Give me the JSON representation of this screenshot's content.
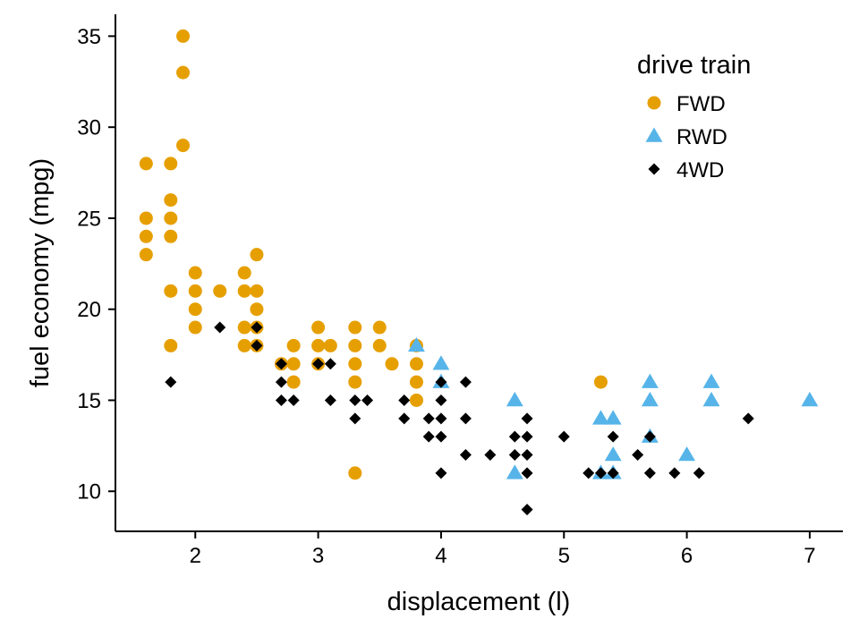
{
  "chart_data": {
    "type": "scatter",
    "title": "",
    "xlabel": "displacement (l)",
    "ylabel": "fuel economy (mpg)",
    "xlim": [
      1.35,
      7.27
    ],
    "ylim": [
      7.8,
      36.2
    ],
    "x_ticks": [
      2,
      3,
      4,
      5,
      6,
      7
    ],
    "y_ticks": [
      10,
      15,
      20,
      25,
      30,
      35
    ],
    "grid": false,
    "legend": {
      "title": "drive train",
      "placement": "top-right",
      "items": [
        {
          "label": "FWD",
          "shape": "circle",
          "color": "#E69F00"
        },
        {
          "label": "RWD",
          "shape": "triangle",
          "color": "#56B4E9"
        },
        {
          "label": "4WD",
          "shape": "diamond",
          "color": "#000000"
        }
      ]
    },
    "series": [
      {
        "name": "FWD",
        "shape": "circle",
        "color": "#E69F00",
        "points": [
          [
            1.6,
            28
          ],
          [
            1.6,
            25
          ],
          [
            1.6,
            24
          ],
          [
            1.6,
            23
          ],
          [
            1.8,
            28
          ],
          [
            1.8,
            26
          ],
          [
            1.8,
            25
          ],
          [
            1.8,
            24
          ],
          [
            1.8,
            21
          ],
          [
            1.8,
            18
          ],
          [
            1.9,
            35
          ],
          [
            1.9,
            33
          ],
          [
            1.9,
            29
          ],
          [
            2.0,
            22
          ],
          [
            2.0,
            21
          ],
          [
            2.0,
            20
          ],
          [
            2.0,
            19
          ],
          [
            2.2,
            21
          ],
          [
            2.4,
            22
          ],
          [
            2.4,
            21
          ],
          [
            2.4,
            19
          ],
          [
            2.4,
            18
          ],
          [
            2.5,
            23
          ],
          [
            2.5,
            21
          ],
          [
            2.5,
            20
          ],
          [
            2.5,
            19
          ],
          [
            2.5,
            18
          ],
          [
            2.7,
            17
          ],
          [
            2.8,
            18
          ],
          [
            2.8,
            17
          ],
          [
            2.8,
            16
          ],
          [
            3.0,
            19
          ],
          [
            3.0,
            18
          ],
          [
            3.0,
            17
          ],
          [
            3.1,
            18
          ],
          [
            3.3,
            19
          ],
          [
            3.3,
            18
          ],
          [
            3.3,
            17
          ],
          [
            3.3,
            16
          ],
          [
            3.3,
            11
          ],
          [
            3.5,
            19
          ],
          [
            3.5,
            18
          ],
          [
            3.6,
            17
          ],
          [
            3.8,
            18
          ],
          [
            3.8,
            17
          ],
          [
            3.8,
            16
          ],
          [
            3.8,
            15
          ],
          [
            5.3,
            16
          ]
        ]
      },
      {
        "name": "RWD",
        "shape": "triangle",
        "color": "#56B4E9",
        "points": [
          [
            3.8,
            18
          ],
          [
            4.0,
            17
          ],
          [
            4.0,
            16
          ],
          [
            4.6,
            15
          ],
          [
            4.6,
            11
          ],
          [
            5.3,
            14
          ],
          [
            5.3,
            11
          ],
          [
            5.4,
            14
          ],
          [
            5.4,
            12
          ],
          [
            5.4,
            11
          ],
          [
            5.7,
            16
          ],
          [
            5.7,
            15
          ],
          [
            5.7,
            13
          ],
          [
            6.0,
            12
          ],
          [
            6.2,
            16
          ],
          [
            6.2,
            15
          ],
          [
            7.0,
            15
          ]
        ]
      },
      {
        "name": "4WD",
        "shape": "diamond",
        "color": "#000000",
        "points": [
          [
            1.8,
            16
          ],
          [
            2.2,
            19
          ],
          [
            2.5,
            19
          ],
          [
            2.5,
            18
          ],
          [
            2.7,
            17
          ],
          [
            2.7,
            16
          ],
          [
            2.7,
            15
          ],
          [
            2.8,
            15
          ],
          [
            3.0,
            17
          ],
          [
            3.1,
            17
          ],
          [
            3.1,
            15
          ],
          [
            3.3,
            15
          ],
          [
            3.3,
            14
          ],
          [
            3.4,
            15
          ],
          [
            3.7,
            15
          ],
          [
            3.7,
            14
          ],
          [
            3.9,
            14
          ],
          [
            3.9,
            13
          ],
          [
            4.0,
            16
          ],
          [
            4.0,
            15
          ],
          [
            4.0,
            14
          ],
          [
            4.0,
            13
          ],
          [
            4.0,
            11
          ],
          [
            4.2,
            16
          ],
          [
            4.2,
            14
          ],
          [
            4.2,
            12
          ],
          [
            4.4,
            12
          ],
          [
            4.6,
            13
          ],
          [
            4.6,
            12
          ],
          [
            4.7,
            14
          ],
          [
            4.7,
            13
          ],
          [
            4.7,
            12
          ],
          [
            4.7,
            11
          ],
          [
            4.7,
            9
          ],
          [
            5.0,
            13
          ],
          [
            5.2,
            11
          ],
          [
            5.3,
            11
          ],
          [
            5.4,
            13
          ],
          [
            5.4,
            11
          ],
          [
            5.6,
            12
          ],
          [
            5.7,
            13
          ],
          [
            5.7,
            11
          ],
          [
            5.9,
            11
          ],
          [
            6.1,
            11
          ],
          [
            6.5,
            14
          ]
        ]
      }
    ]
  }
}
